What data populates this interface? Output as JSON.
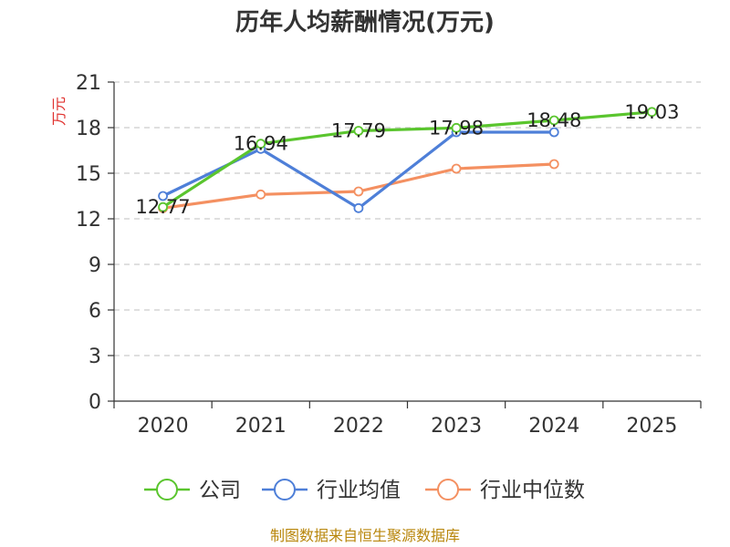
{
  "chart_data": {
    "type": "line",
    "title": "历年人均薪酬情况(万元)",
    "xlabel": "",
    "ylabel": "万元",
    "categories": [
      "2020",
      "2021",
      "2022",
      "2023",
      "2024",
      "2025"
    ],
    "ylim": [
      0,
      21
    ],
    "yticks": [
      0,
      3,
      6,
      9,
      12,
      15,
      18,
      21
    ],
    "grid": true,
    "legend_position": "bottom",
    "series": [
      {
        "name": "公司",
        "color": "#5ac52e",
        "values": [
          12.77,
          16.94,
          17.79,
          17.98,
          18.48,
          19.03
        ],
        "labels": [
          "12.77",
          "16.94",
          "17.79",
          "17.98",
          "18.48",
          "19.03"
        ]
      },
      {
        "name": "行业均值",
        "color": "#4e7fd8",
        "values": [
          13.5,
          16.6,
          12.7,
          17.7,
          17.7,
          null
        ]
      },
      {
        "name": "行业中位数",
        "color": "#f49061",
        "values": [
          12.7,
          13.6,
          13.8,
          15.3,
          15.6,
          null
        ]
      }
    ]
  },
  "source": "制图数据来自恒生聚源数据库"
}
